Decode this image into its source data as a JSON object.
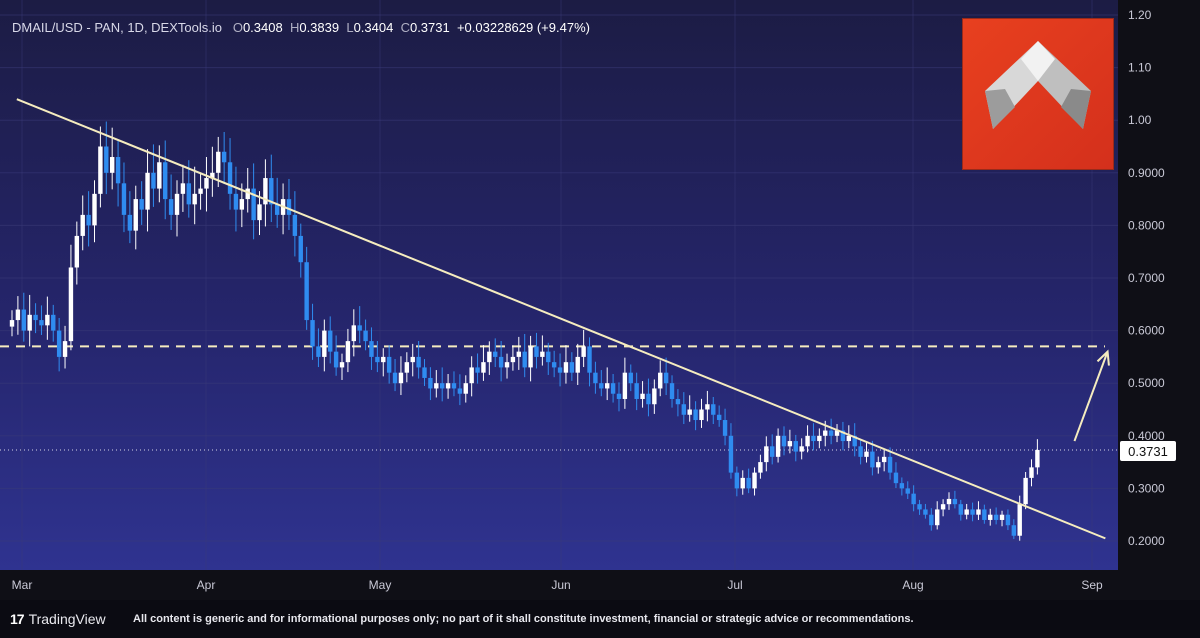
{
  "header": {
    "symbol": "DMAIL/USD - PAN, 1D, DEXTools.io",
    "o_label": "O",
    "o_value": "0.3408",
    "h_label": "H",
    "h_value": "0.3839",
    "l_label": "L",
    "l_value": "0.3404",
    "c_label": "C",
    "c_value": "0.3731",
    "change": "+0.03228629 (+9.47%)"
  },
  "price_tag": "0.3731",
  "footer": {
    "brand": "TradingView",
    "disclaimer": "All content is generic and for informational purposes only; no part of it shall constitute investment, financial or strategic advice or recommendations."
  },
  "colors": {
    "up": "#ffffff",
    "down": "#2f8cf0",
    "trendline": "#f5ecbf",
    "logo_bg": "#e0391e"
  },
  "chart_data": {
    "type": "candlestick",
    "title": "",
    "xlabel": "",
    "ylabel": "",
    "ylim": [
      0.2,
      1.2
    ],
    "ticks": [
      "0.2000",
      "0.3000",
      "0.4000",
      "0.5000",
      "0.6000",
      "0.7000",
      "0.8000",
      "0.9000",
      "1.00",
      "1.10",
      "1.20"
    ],
    "months": [
      "Mar",
      "Apr",
      "May",
      "Jun",
      "Jul",
      "Aug",
      "Sep"
    ],
    "last_price": 0.3731,
    "grid": true,
    "closes": [
      0.62,
      0.64,
      0.6,
      0.63,
      0.62,
      0.61,
      0.63,
      0.6,
      0.55,
      0.58,
      0.72,
      0.78,
      0.82,
      0.8,
      0.86,
      0.95,
      0.9,
      0.93,
      0.88,
      0.82,
      0.79,
      0.85,
      0.83,
      0.9,
      0.87,
      0.92,
      0.85,
      0.82,
      0.86,
      0.88,
      0.84,
      0.86,
      0.87,
      0.89,
      0.9,
      0.94,
      0.92,
      0.86,
      0.83,
      0.85,
      0.87,
      0.81,
      0.84,
      0.89,
      0.84,
      0.82,
      0.85,
      0.82,
      0.78,
      0.73,
      0.62,
      0.57,
      0.55,
      0.6,
      0.56,
      0.53,
      0.54,
      0.58,
      0.61,
      0.6,
      0.58,
      0.55,
      0.54,
      0.55,
      0.52,
      0.5,
      0.52,
      0.54,
      0.55,
      0.53,
      0.51,
      0.49,
      0.5,
      0.49,
      0.5,
      0.49,
      0.48,
      0.5,
      0.53,
      0.52,
      0.54,
      0.56,
      0.55,
      0.53,
      0.54,
      0.55,
      0.56,
      0.53,
      0.57,
      0.55,
      0.56,
      0.54,
      0.53,
      0.52,
      0.54,
      0.52,
      0.55,
      0.57,
      0.52,
      0.5,
      0.49,
      0.5,
      0.48,
      0.47,
      0.52,
      0.5,
      0.47,
      0.48,
      0.46,
      0.49,
      0.52,
      0.5,
      0.47,
      0.46,
      0.44,
      0.45,
      0.43,
      0.45,
      0.46,
      0.44,
      0.43,
      0.4,
      0.33,
      0.3,
      0.32,
      0.3,
      0.33,
      0.35,
      0.38,
      0.36,
      0.4,
      0.38,
      0.39,
      0.37,
      0.38,
      0.4,
      0.39,
      0.4,
      0.41,
      0.4,
      0.41,
      0.39,
      0.4,
      0.38,
      0.36,
      0.37,
      0.34,
      0.35,
      0.36,
      0.33,
      0.31,
      0.3,
      0.29,
      0.27,
      0.26,
      0.25,
      0.23,
      0.26,
      0.27,
      0.28,
      0.27,
      0.25,
      0.26,
      0.25,
      0.26,
      0.24,
      0.25,
      0.24,
      0.25,
      0.23,
      0.21,
      0.27,
      0.32,
      0.34,
      0.3731
    ],
    "annotations": {
      "trendline": [
        [
          0.8,
          1.04
        ],
        [
          99.4,
          0.205
        ]
      ],
      "support_level": 0.57,
      "arrow_from": [
        96.6,
        0.39
      ],
      "arrow_to": [
        99.6,
        0.56
      ]
    }
  }
}
